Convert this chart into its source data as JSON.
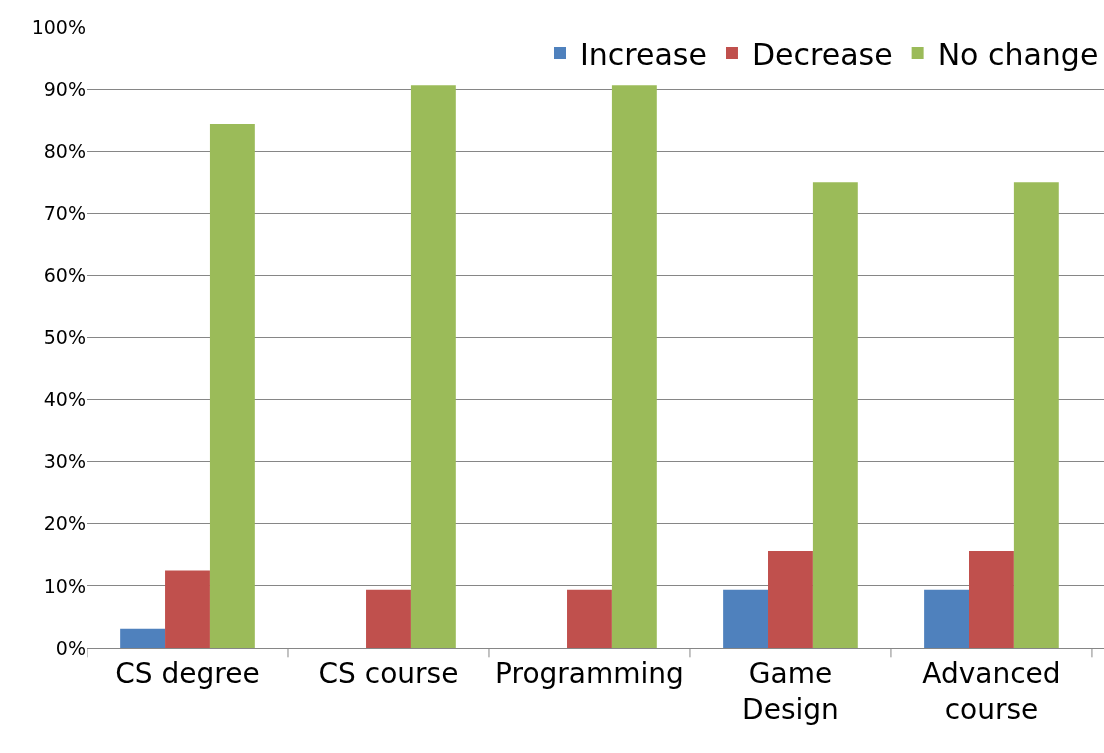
{
  "chart_data": {
    "type": "bar",
    "categories": [
      "CS degree",
      "CS course",
      "Programming",
      "Game\nDesign",
      "Advanced\ncourse"
    ],
    "series": [
      {
        "name": "Increase",
        "color": "#4f81bd",
        "values": [
          3.1,
          0,
          0,
          9.4,
          9.4
        ]
      },
      {
        "name": "Decrease",
        "color": "#c0504d",
        "values": [
          12.5,
          9.4,
          9.4,
          15.6,
          15.6
        ]
      },
      {
        "name": "No change",
        "color": "#9bbb59",
        "values": [
          84.4,
          90.6,
          90.6,
          75,
          75
        ]
      }
    ],
    "ylim": [
      0,
      100
    ],
    "yticks": [
      {
        "value": 0,
        "label": "0%"
      },
      {
        "value": 10,
        "label": "10%"
      },
      {
        "value": 20,
        "label": "20%"
      },
      {
        "value": 30,
        "label": "30%"
      },
      {
        "value": 40,
        "label": "40%"
      },
      {
        "value": 50,
        "label": "50%"
      },
      {
        "value": 60,
        "label": "60%"
      },
      {
        "value": 70,
        "label": "70%"
      },
      {
        "value": 80,
        "label": "80%"
      },
      {
        "value": 90,
        "label": "90%"
      },
      {
        "value": 100,
        "label": "100%"
      }
    ],
    "grid": "y",
    "legend": "top right"
  }
}
